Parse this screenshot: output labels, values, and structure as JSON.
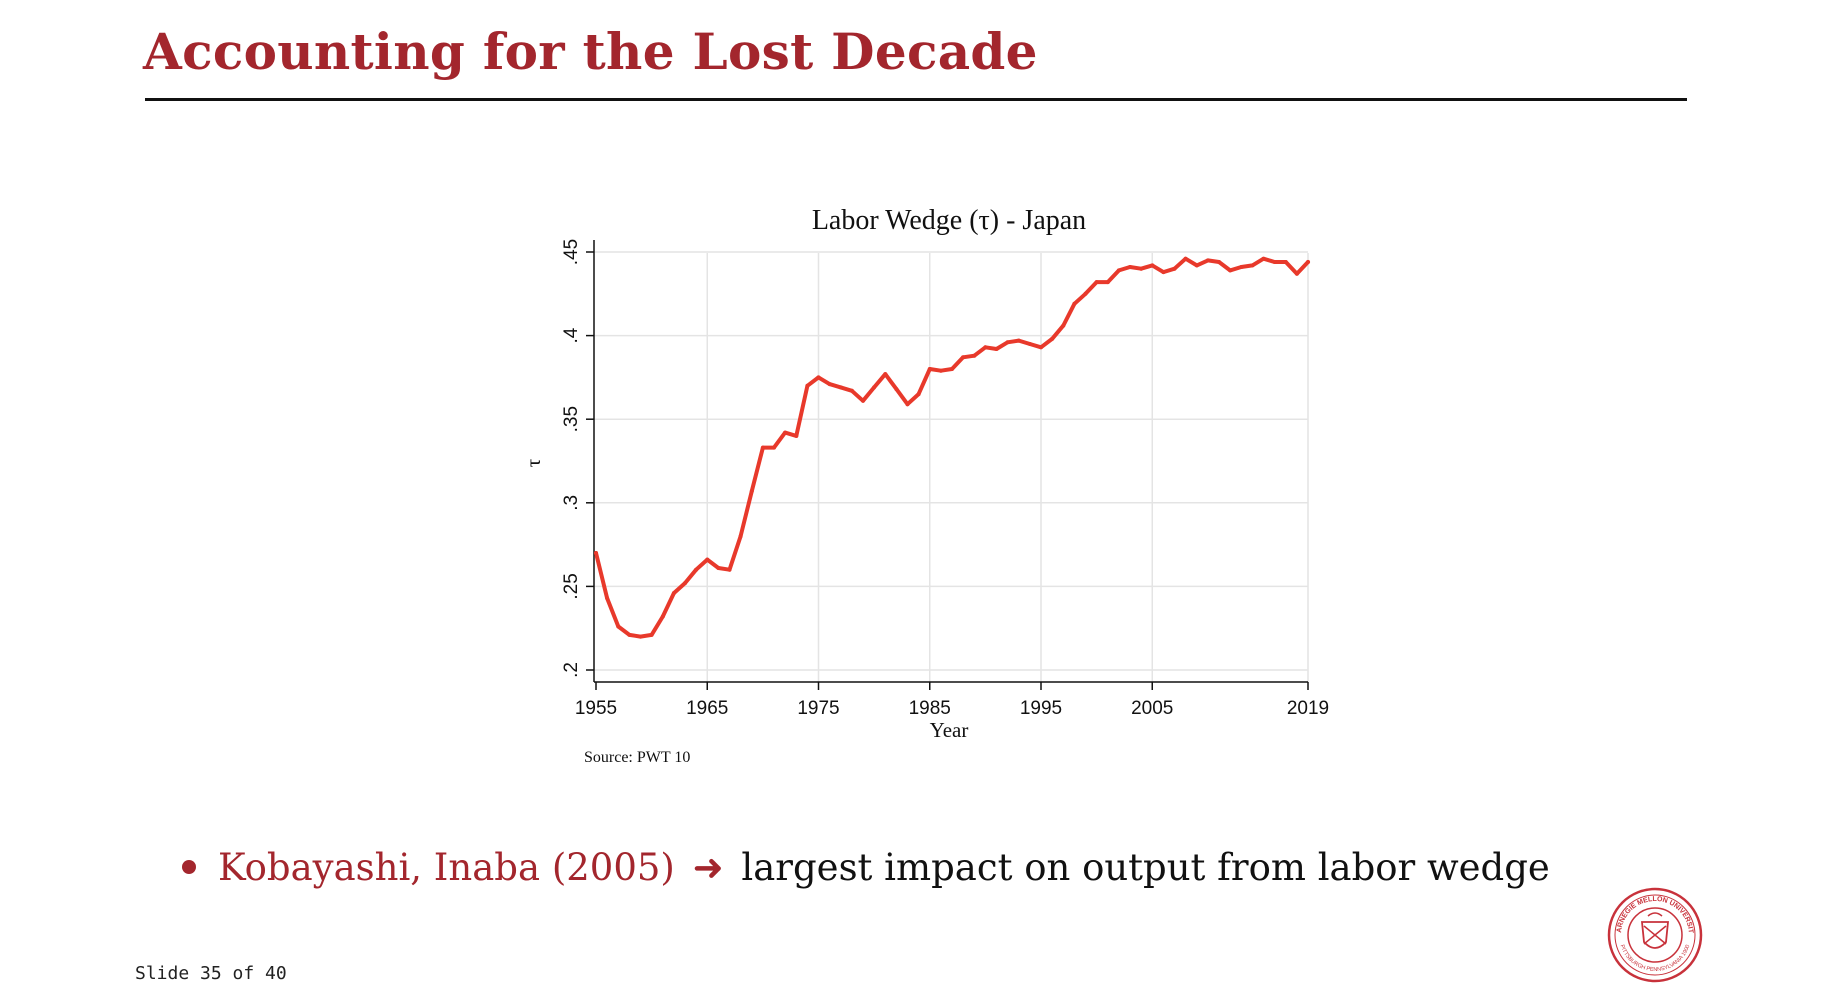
{
  "slide": {
    "title": "Accounting for the Lost Decade",
    "slide_number": "Slide 35 of 40"
  },
  "bullet": {
    "reference": "Kobayashi, Inaba (2005)",
    "arrow": "➜",
    "text": "largest impact on output from labor wedge"
  },
  "colors": {
    "title": "#a3262d",
    "line": "#e8392b",
    "accent": "#a3262d"
  },
  "logo": {
    "name": "carnegie-mellon-seal",
    "text": "CARNEGIE MELLON UNIVERSITY · PITTSBURGH PENNSYLVANIA 1900"
  },
  "chart_data": {
    "type": "line",
    "title": "Labor Wedge (τ) - Japan",
    "xlabel": "Year",
    "ylabel": "τ",
    "source": "Source: PWT 10",
    "xlim": [
      1955,
      2019
    ],
    "ylim": [
      0.2,
      0.45
    ],
    "x_ticks": [
      1955,
      1965,
      1975,
      1985,
      1995,
      2005,
      2019
    ],
    "x_tick_labels": [
      "1955",
      "1965",
      "1975",
      "1985",
      "1995",
      "2005",
      "2019"
    ],
    "y_ticks": [
      0.2,
      0.25,
      0.3,
      0.35,
      0.4,
      0.45
    ],
    "y_tick_labels": [
      ".2",
      ".25",
      ".3",
      ".35",
      ".4",
      ".45"
    ],
    "grid": true,
    "legend": "none",
    "series": [
      {
        "x": [
          1955,
          1956,
          1957,
          1958,
          1959,
          1960,
          1961,
          1962,
          1963,
          1964,
          1965,
          1966,
          1967,
          1968,
          1969,
          1970,
          1971,
          1972,
          1973,
          1974,
          1975,
          1976,
          1977,
          1978,
          1979,
          1980,
          1981,
          1982,
          1983,
          1984,
          1985,
          1986,
          1987,
          1988,
          1989,
          1990,
          1991,
          1992,
          1993,
          1994,
          1995,
          1996,
          1997,
          1998,
          1999,
          2000,
          2001,
          2002,
          2003,
          2004,
          2005,
          2006,
          2007,
          2008,
          2009,
          2010,
          2011,
          2012,
          2013,
          2014,
          2015,
          2016,
          2017,
          2018,
          2019
        ],
        "values": [
          0.27,
          0.243,
          0.226,
          0.221,
          0.22,
          0.221,
          0.232,
          0.246,
          0.252,
          0.26,
          0.266,
          0.261,
          0.26,
          0.28,
          0.307,
          0.333,
          0.333,
          0.342,
          0.34,
          0.37,
          0.375,
          0.371,
          0.369,
          0.367,
          0.361,
          0.369,
          0.377,
          0.368,
          0.359,
          0.365,
          0.38,
          0.379,
          0.38,
          0.387,
          0.388,
          0.393,
          0.392,
          0.396,
          0.397,
          0.395,
          0.393,
          0.398,
          0.406,
          0.419,
          0.425,
          0.432,
          0.432,
          0.439,
          0.441,
          0.44,
          0.442,
          0.438,
          0.44,
          0.446,
          0.442,
          0.445,
          0.444,
          0.439,
          0.441,
          0.442,
          0.446,
          0.444,
          0.444,
          0.437,
          0.444
        ]
      }
    ]
  }
}
